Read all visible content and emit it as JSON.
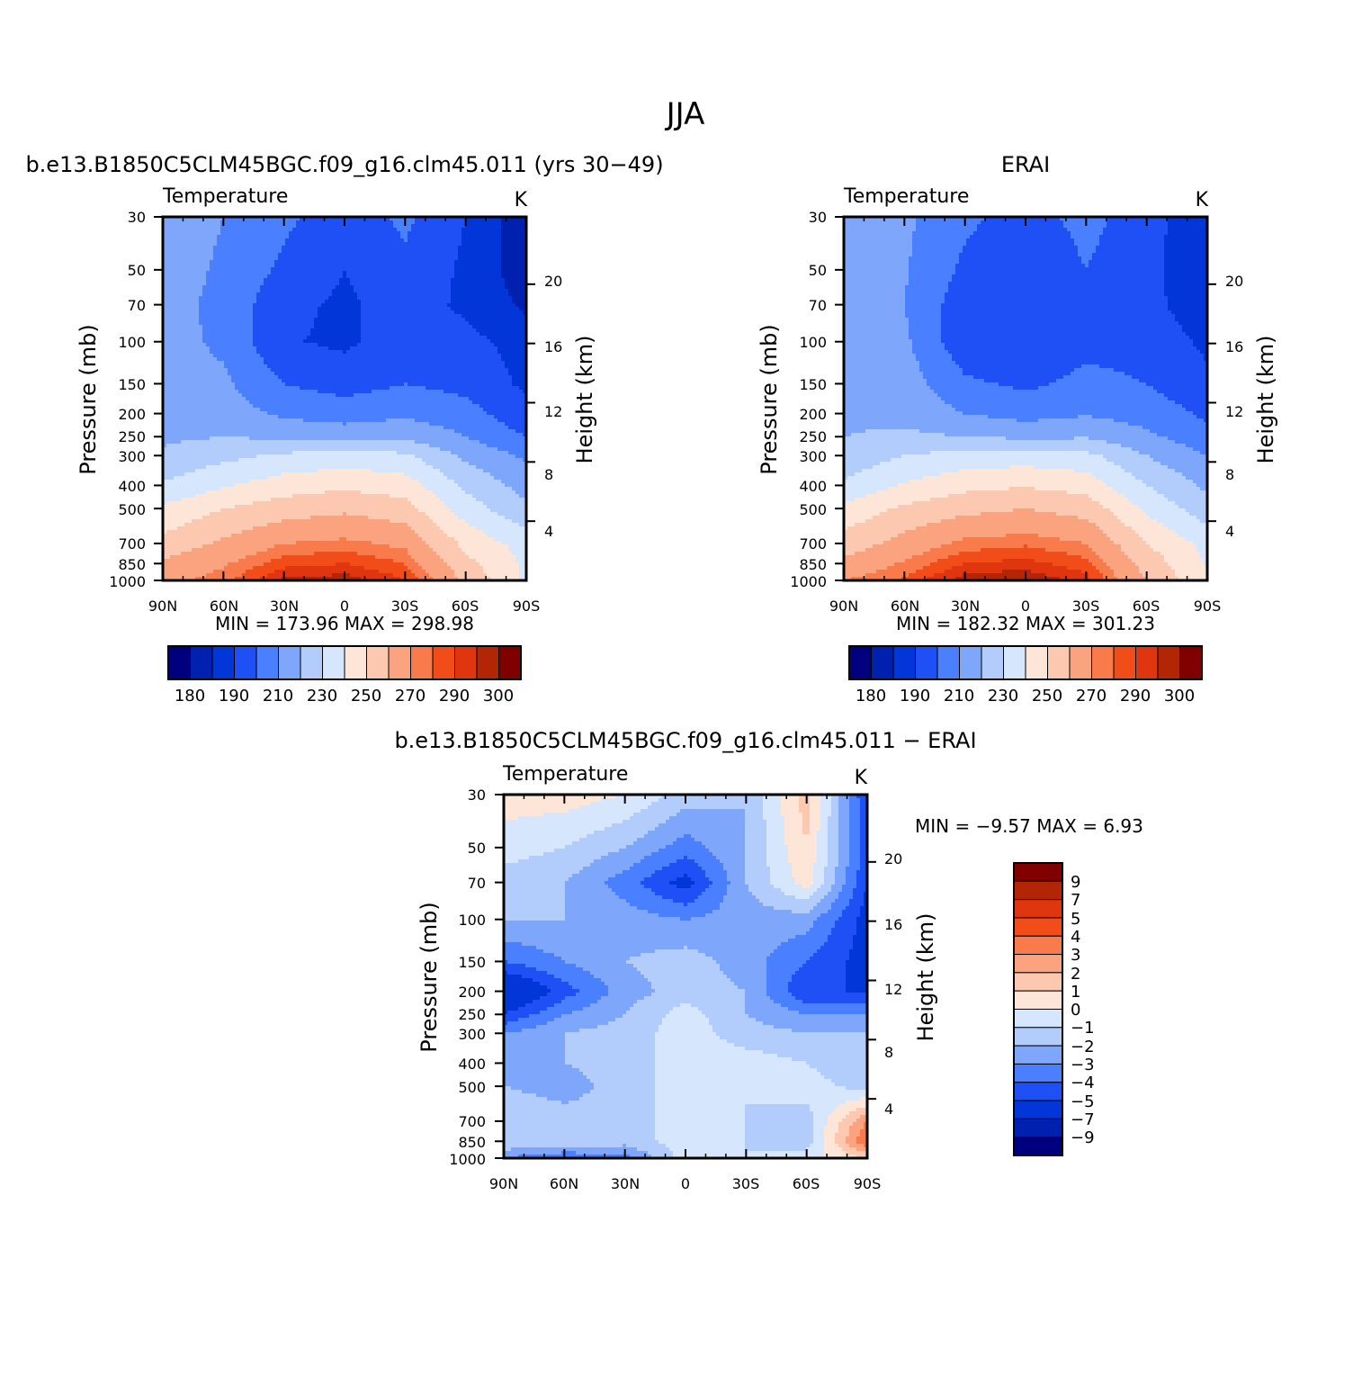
{
  "page": {
    "main_title": "JJA",
    "diff_title": "b.e13.B1850C5CLM45BGC.f09_g16.clm45.011  −  ERAI"
  },
  "panels": {
    "model": {
      "case_title": "b.e13.B1850C5CLM45BGC.f09_g16.clm45.011  (yrs  30−49)",
      "variable": "Temperature",
      "units": "K",
      "minmax": "MIN  =  173.96    MAX  =  298.98"
    },
    "obs": {
      "case_title": "ERAI",
      "variable": "Temperature",
      "units": "K",
      "minmax": "MIN  =  182.32    MAX  =  301.23"
    },
    "diff": {
      "variable": "Temperature",
      "units": "K",
      "minmax": "MIN  =    −9.57    MAX  =      6.93"
    }
  },
  "axes": {
    "ylabel_left": "Pressure  (mb)",
    "ylabel_right": "Height  (km)",
    "pressure_ticks": [
      "30",
      "50",
      "70",
      "100",
      "150",
      "200",
      "250",
      "300",
      "400",
      "500",
      "700",
      "850",
      "1000"
    ],
    "height_ticks": [
      "20",
      "16",
      "12",
      "8",
      "4"
    ],
    "lat_ticks": [
      "90N",
      "60N",
      "30N",
      "0",
      "30S",
      "60S",
      "90S"
    ]
  },
  "colors": {
    "temp_fill": [
      "#00007f",
      "#0020b0",
      "#0236d8",
      "#1e50f5",
      "#4a80ff",
      "#7ea6fb",
      "#b2ccfc",
      "#d6e6fc",
      "#fde6d8",
      "#fcc8b0",
      "#fba37e",
      "#f97b4c",
      "#f24c18",
      "#e03610",
      "#b22606",
      "#800000"
    ],
    "diff_fill": [
      "#00007f",
      "#0020b0",
      "#0236d8",
      "#1e50f5",
      "#4a80ff",
      "#7ea6fb",
      "#b2ccfc",
      "#d6e6fc",
      "#fde6d8",
      "#fcc8b0",
      "#fba37e",
      "#f97b4c",
      "#f24c18",
      "#e03610",
      "#b22606",
      "#800000"
    ]
  },
  "chart_data": [
    {
      "type": "heatmap",
      "panel": "model",
      "title": "b.e13.B1850C5CLM45BGC.f09_g16.clm45.011  (yrs  30−49)",
      "variable": "Temperature",
      "units": "K",
      "x": [
        90,
        60,
        30,
        0,
        -30,
        -60,
        -90
      ],
      "x_labels": [
        "90N",
        "60N",
        "30N",
        "0",
        "30S",
        "60S",
        "90S"
      ],
      "y_pressure": [
        30,
        50,
        70,
        100,
        150,
        200,
        250,
        300,
        400,
        500,
        700,
        850,
        1000
      ],
      "z": [
        [
          228,
          220,
          212,
          205,
          212,
          200,
          183
        ],
        [
          226,
          218,
          208,
          200,
          208,
          198,
          184
        ],
        [
          224,
          217,
          203,
          198,
          205,
          198,
          188
        ],
        [
          224,
          218,
          201,
          198,
          205,
          203,
          196
        ],
        [
          224,
          222,
          210,
          206,
          210,
          207,
          198
        ],
        [
          226,
          225,
          218,
          215,
          218,
          214,
          203
        ],
        [
          228,
          230,
          228,
          226,
          228,
          220,
          210
        ],
        [
          232,
          237,
          242,
          244,
          242,
          228,
          218
        ],
        [
          241,
          249,
          255,
          258,
          255,
          238,
          226
        ],
        [
          252,
          260,
          265,
          268,
          264,
          245,
          232
        ],
        [
          263,
          272,
          280,
          282,
          278,
          257,
          246
        ],
        [
          272,
          279,
          288,
          290,
          285,
          263,
          248
        ],
        [
          278,
          283,
          296,
          298,
          290,
          268,
          248
        ]
      ],
      "zmin": 173.96,
      "zmax": 298.98,
      "colorbar_labels": [
        "180",
        "190",
        "210",
        "230",
        "250",
        "270",
        "290",
        "300"
      ]
    },
    {
      "type": "heatmap",
      "panel": "obs",
      "title": "ERAI",
      "variable": "Temperature",
      "units": "K",
      "x": [
        90,
        60,
        30,
        0,
        -30,
        -60,
        -90
      ],
      "x_labels": [
        "90N",
        "60N",
        "30N",
        "0",
        "30S",
        "60S",
        "90S"
      ],
      "y_pressure": [
        30,
        50,
        70,
        100,
        150,
        200,
        250,
        300,
        400,
        500,
        700,
        850,
        1000
      ],
      "z": [
        [
          228,
          222,
          212,
          206,
          213,
          205,
          190
        ],
        [
          227,
          221,
          208,
          202,
          210,
          203,
          192
        ],
        [
          226,
          220,
          204,
          200,
          207,
          203,
          194
        ],
        [
          226,
          222,
          203,
          200,
          207,
          206,
          198
        ],
        [
          228,
          225,
          212,
          208,
          213,
          210,
          202
        ],
        [
          228,
          227,
          220,
          216,
          219,
          216,
          208
        ],
        [
          230,
          232,
          230,
          228,
          229,
          222,
          214
        ],
        [
          233,
          240,
          244,
          245,
          243,
          230,
          220
        ],
        [
          242,
          251,
          257,
          259,
          256,
          240,
          228
        ],
        [
          253,
          262,
          267,
          270,
          266,
          248,
          234
        ],
        [
          264,
          274,
          282,
          284,
          280,
          260,
          247
        ],
        [
          273,
          281,
          290,
          292,
          287,
          266,
          249
        ],
        [
          280,
          286,
          298,
          300,
          292,
          270,
          251
        ]
      ],
      "zmin": 182.32,
      "zmax": 301.23,
      "colorbar_labels": [
        "180",
        "190",
        "210",
        "230",
        "250",
        "270",
        "290",
        "300"
      ]
    },
    {
      "type": "heatmap",
      "panel": "diff",
      "title": "b.e13.B1850C5CLM45BGC.f09_g16.clm45.011  −  ERAI",
      "variable": "Temperature",
      "units": "K",
      "x": [
        90,
        60,
        30,
        0,
        -30,
        -60,
        -90
      ],
      "x_labels": [
        "90N",
        "60N",
        "30N",
        "0",
        "30S",
        "60S",
        "90S"
      ],
      "y_pressure": [
        30,
        50,
        70,
        100,
        150,
        200,
        250,
        300,
        400,
        500,
        700,
        850,
        1000
      ],
      "z": [
        [
          0.5,
          0.5,
          0.0,
          -1.5,
          -2.0,
          1.5,
          -5.0
        ],
        [
          -0.5,
          -1.0,
          -2.0,
          -3.5,
          -2.0,
          1.0,
          -4.5
        ],
        [
          -1.5,
          -2.0,
          -3.5,
          -5.5,
          -2.0,
          0.5,
          -5.0
        ],
        [
          -2.0,
          -2.0,
          -2.5,
          -3.0,
          -2.5,
          -2.5,
          -5.5
        ],
        [
          -4.0,
          -3.0,
          -2.0,
          -1.5,
          -2.5,
          -4.0,
          -5.5
        ],
        [
          -7.0,
          -4.5,
          -2.5,
          -1.5,
          -2.0,
          -5.0,
          -5.0
        ],
        [
          -5.0,
          -3.0,
          -2.0,
          -0.5,
          -2.0,
          -3.0,
          -3.0
        ],
        [
          -3.0,
          -2.0,
          -1.5,
          -0.5,
          -1.5,
          -2.0,
          -2.0
        ],
        [
          -2.0,
          -2.0,
          -1.5,
          -0.5,
          -0.5,
          -1.0,
          -2.0
        ],
        [
          -2.0,
          -2.5,
          -1.5,
          -0.5,
          -1.0,
          -0.5,
          -1.5
        ],
        [
          -1.0,
          -1.5,
          -1.5,
          -0.5,
          -1.0,
          -1.5,
          3.0
        ],
        [
          -1.0,
          -1.0,
          -1.5,
          -0.5,
          -1.0,
          -1.5,
          4.0
        ],
        [
          -3.0,
          -4.0,
          -3.5,
          -0.5,
          -1.0,
          -0.5,
          1.0
        ]
      ],
      "zmin": -9.57,
      "zmax": 6.93,
      "levels": [
        -9,
        -7,
        -5,
        -4,
        -3,
        -2,
        -1,
        0,
        1,
        2,
        3,
        4,
        5,
        7,
        9
      ],
      "colorbar_labels": [
        "9",
        "7",
        "5",
        "4",
        "3",
        "2",
        "1",
        "0",
        "−1",
        "−2",
        "−3",
        "−4",
        "−5",
        "−7",
        "−9"
      ]
    }
  ]
}
